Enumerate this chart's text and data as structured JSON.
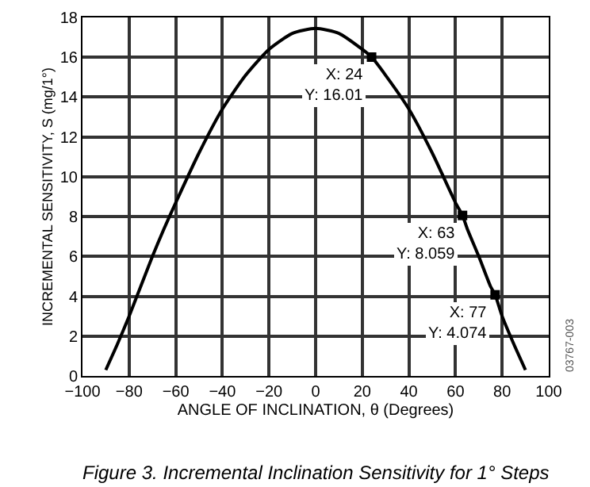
{
  "chart_data": {
    "type": "line",
    "title": "Figure 3. Incremental Inclination Sensitivity for 1° Steps",
    "xlabel": "ANGLE OF INCLINATION, θ (Degrees)",
    "ylabel": "INCREMENTAL SENSITIVITY, S (mg/1°)",
    "series": [
      {
        "color": "#000000",
        "x": [
          -90,
          -85,
          -80,
          -75,
          -70,
          -65,
          -60,
          -50,
          -40,
          -30,
          -20,
          -10,
          0,
          10,
          20,
          24,
          30,
          40,
          50,
          60,
          63,
          65,
          70,
          75,
          77,
          80,
          85,
          90
        ],
        "values": [
          0.3,
          1.6,
          3.0,
          4.5,
          6.0,
          7.4,
          8.7,
          11.2,
          13.4,
          15.1,
          16.4,
          17.2,
          17.45,
          17.2,
          16.4,
          16.01,
          15.1,
          13.4,
          11.2,
          8.7,
          8.059,
          7.4,
          6.0,
          4.5,
          4.074,
          3.0,
          1.6,
          0.3
        ]
      },
      {
        "type": "scatter",
        "marker": "square",
        "color": "#000000",
        "x": [
          24,
          63,
          77
        ],
        "values": [
          16.01,
          8.059,
          4.074
        ]
      }
    ],
    "xlim": [
      -100,
      100
    ],
    "xticks": [
      {
        "value": -100,
        "label": "−100"
      },
      {
        "value": -80,
        "label": "−80"
      },
      {
        "value": -60,
        "label": "−60"
      },
      {
        "value": -40,
        "label": "−40"
      },
      {
        "value": -20,
        "label": "−20"
      },
      0,
      20,
      40,
      60,
      80,
      100
    ],
    "ylim": [
      0,
      18
    ],
    "yticks": [
      0,
      2,
      4,
      6,
      8,
      10,
      12,
      14,
      16,
      18
    ],
    "grid": true,
    "marker": "none",
    "line_style": "solid",
    "annotations": [
      {
        "text": "X: 24\nY: 16.01",
        "x": 24,
        "y": 16.01
      },
      {
        "text": "X: 63\nY: 8.059",
        "x": 63,
        "y": 8.059
      },
      {
        "text": "X: 77\nY: 4.074",
        "x": 77,
        "y": 4.074
      },
      "03767-003"
    ]
  }
}
